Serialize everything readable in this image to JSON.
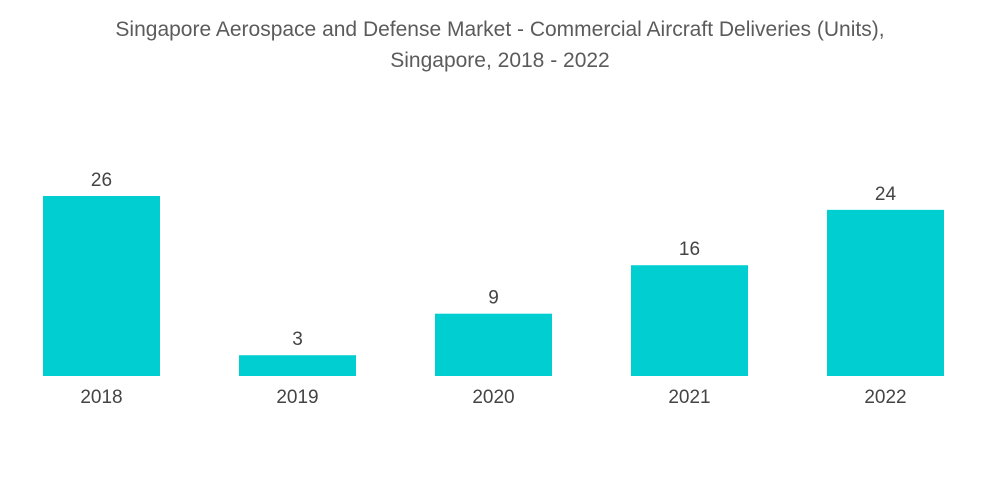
{
  "chart_data": {
    "type": "bar",
    "title": "Singapore Aerospace and Defense Market - Commercial Aircraft Deliveries (Units),",
    "subtitle": "Singapore, 2018 - 2022",
    "categories": [
      "2018",
      "2019",
      "2020",
      "2021",
      "2022"
    ],
    "values": [
      26,
      3,
      9,
      16,
      24
    ],
    "xlabel": "",
    "ylabel": "",
    "ylim": [
      0,
      26
    ],
    "grid": false,
    "legend": "none",
    "bar_color": "#00ced1",
    "data_labels": true
  }
}
